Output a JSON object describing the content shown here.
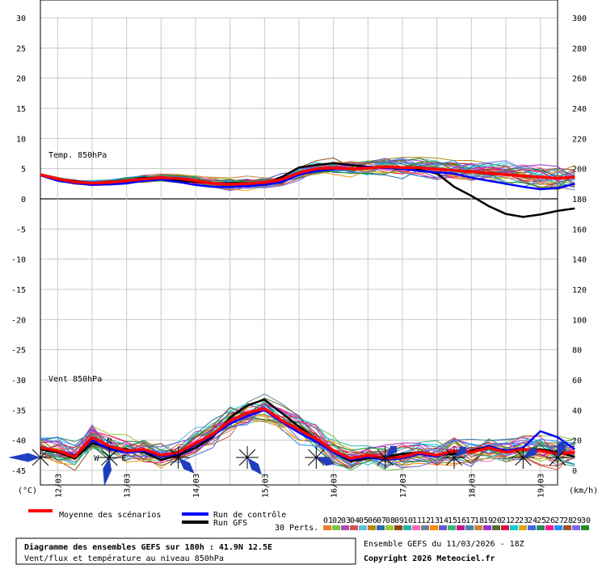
{
  "chart_data": {
    "type": "line",
    "title": "Diagramme des ensembles GEFS sur 180h : 41.9N 12.5E",
    "subtitle": "Vent/flux et température au niveau 850hPa",
    "left_unit": "(°C)",
    "right_unit": "(km/h)",
    "temp_label": "Temp. 850hPa",
    "wind_label": "Vent 850hPa",
    "left_ticks": [
      "30",
      "25",
      "20",
      "15",
      "10",
      "5",
      "0",
      "-5",
      "-10",
      "-15",
      "-20",
      "-25",
      "-30",
      "-35",
      "-40",
      "-45"
    ],
    "right_ticks": [
      "300",
      "280",
      "260",
      "240",
      "220",
      "200",
      "180",
      "160",
      "140",
      "120",
      "100",
      "80",
      "60",
      "40",
      "20",
      "0"
    ],
    "x_labels": [
      "12/03",
      "13/03",
      "14/03",
      "15/03",
      "16/03",
      "17/03",
      "18/03",
      "19/03"
    ],
    "ylim_temp": [
      -45,
      30
    ],
    "ylim_wind_kmh": [
      0,
      300
    ],
    "x_hours_range": [
      0,
      180
    ],
    "step_hours": 6,
    "temp_mean": [
      4.0,
      3.3,
      2.8,
      2.6,
      2.7,
      3.0,
      3.3,
      3.5,
      3.4,
      3.0,
      2.6,
      2.4,
      2.5,
      2.7,
      3.2,
      4.3,
      5.0,
      5.1,
      5.0,
      5.1,
      5.3,
      5.2,
      5.2,
      4.9,
      4.7,
      4.5,
      4.2,
      4.0,
      3.8,
      3.6,
      3.4,
      3.6
    ],
    "temp_control": [
      3.9,
      3.0,
      2.6,
      2.3,
      2.4,
      2.6,
      3.0,
      3.2,
      2.8,
      2.3,
      2.0,
      2.0,
      2.1,
      2.3,
      2.8,
      4.0,
      4.6,
      4.9,
      5.0,
      5.3,
      5.1,
      5.0,
      4.6,
      4.4,
      4.2,
      3.5,
      3.0,
      2.5,
      2.0,
      1.6,
      1.8,
      2.5
    ],
    "temp_gfs": [
      4.0,
      3.3,
      3.0,
      2.5,
      2.8,
      3.0,
      3.5,
      3.2,
      3.0,
      2.8,
      2.6,
      2.6,
      2.6,
      2.4,
      3.6,
      5.2,
      5.6,
      5.9,
      5.6,
      5.3,
      5.1,
      5.0,
      4.8,
      4.2,
      2.0,
      0.5,
      -1.2,
      -2.5,
      -3.0,
      -2.6,
      -2.0,
      -1.6
    ],
    "wind_mean": [
      15,
      13,
      9,
      22,
      16,
      13,
      14,
      10,
      12,
      18,
      24,
      33,
      38,
      41,
      33,
      27,
      21,
      13,
      8,
      10,
      8,
      9,
      12,
      10,
      13,
      12,
      15,
      12,
      14,
      13,
      11,
      12
    ],
    "wind_control": [
      15,
      13,
      10,
      20,
      14,
      12,
      13,
      9,
      11,
      17,
      23,
      31,
      36,
      40,
      32,
      25,
      19,
      12,
      7,
      9,
      7,
      8,
      11,
      9,
      13,
      12,
      16,
      13,
      15,
      26,
      22,
      14
    ],
    "wind_gfs": [
      14,
      12,
      8,
      18,
      15,
      14,
      12,
      7,
      10,
      15,
      22,
      35,
      43,
      47,
      38,
      29,
      21,
      12,
      6,
      8,
      9,
      11,
      12,
      10,
      11,
      13,
      16,
      13,
      14,
      14,
      12,
      9
    ],
    "perturbation_colors": [
      "#e67e22",
      "#7fc24a",
      "#a64fb5",
      "#d9534f",
      "#5bc0de",
      "#b8860b",
      "#2a6db0",
      "#9acd32",
      "#8b4513",
      "#20b2aa",
      "#ff69b4",
      "#708090",
      "#ff8c00",
      "#6a5acd",
      "#3cb371",
      "#c71585",
      "#4682b4",
      "#cd853f",
      "#9932cc",
      "#556b2f",
      "#dc143c",
      "#00ced1",
      "#daa520",
      "#4169e1",
      "#2e8b57",
      "#ff1493",
      "#1e90ff",
      "#a0522d",
      "#7b68ee",
      "#228b22"
    ],
    "perturbation_ids": [
      "01",
      "02",
      "03",
      "04",
      "05",
      "06",
      "07",
      "08",
      "09",
      "10",
      "11",
      "12",
      "13",
      "14",
      "15",
      "16",
      "17",
      "18",
      "19",
      "20",
      "21",
      "22",
      "23",
      "24",
      "25",
      "26",
      "27",
      "28",
      "29",
      "30"
    ],
    "perturbation_count_label": "30 Perts.",
    "legend": {
      "mean_label": "Moyenne des scénarios",
      "control_label": "Run de contrôle",
      "gfs_label": "Run GFS",
      "mean_color": "#ff0000",
      "control_color": "#0000ff",
      "gfs_color": "#000000"
    },
    "wind_roses": [
      {
        "hour": 0,
        "main_dir": 270,
        "main_len": 1.0
      },
      {
        "hour": 24,
        "main_dir": 190,
        "main_len": 0.9
      },
      {
        "hour": 48,
        "main_dir": 135,
        "main_len": 0.7
      },
      {
        "hour": 72,
        "main_dir": 140,
        "main_len": 0.7
      },
      {
        "hour": 96,
        "main_dir": 110,
        "main_len": 0.6
      },
      {
        "hour": 120,
        "main_dir": 45,
        "main_len": 0.5
      },
      {
        "hour": 144,
        "main_dir": 50,
        "main_len": 0.5
      },
      {
        "hour": 168,
        "main_dir": 60,
        "main_len": 0.5
      },
      {
        "hour": 192,
        "main_dir": 20,
        "main_len": 0.6
      }
    ],
    "wind_rose_labels": {
      "n": "N",
      "w": "W",
      "e": "E"
    },
    "run_info": "Ensemble GEFS du 11/03/2026 - 18Z",
    "copyright": "Copyright 2026 Meteociel.fr"
  }
}
